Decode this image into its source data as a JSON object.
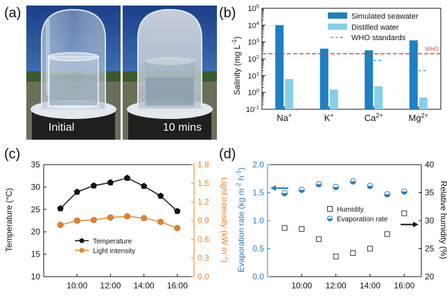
{
  "panel_labels": {
    "a": "(a)",
    "b": "(b)",
    "c": "(c)",
    "d": "(d)"
  },
  "photos": [
    {
      "caption": "Initial"
    },
    {
      "caption": "10 mins"
    }
  ],
  "colors": {
    "seawater": "#1f7fc2",
    "distilled": "#86cfe6",
    "who": "#2a8fd0",
    "who_line": "#e23a3a",
    "temperature": "#111111",
    "light": "#e9822a",
    "evaporation": "#2a7cbb",
    "left_axis_d": "#2a7cbb",
    "right_axis_c": "#e9822a"
  },
  "chart_data": [
    {
      "id": "b",
      "type": "bar",
      "ylabel": "Salinity (mg L",
      "ylabel_sup": "-1",
      "ylabel_end": ")",
      "yscale": "log",
      "ylim": [
        0.1,
        100000
      ],
      "yticks": [
        {
          "base": "10",
          "exp": "-1"
        },
        {
          "base": "10",
          "exp": "0"
        },
        {
          "base": "10",
          "exp": "1"
        },
        {
          "base": "10",
          "exp": "2"
        },
        {
          "base": "10",
          "exp": "3"
        },
        {
          "base": "10",
          "exp": "4"
        },
        {
          "base": "10",
          "exp": "5"
        }
      ],
      "categories": [
        {
          "base": "Na",
          "sup": "+"
        },
        {
          "base": "K",
          "sup": "+"
        },
        {
          "base": "Ca",
          "sup": "2+"
        },
        {
          "base": "Mg",
          "sup": "2+"
        }
      ],
      "series": [
        {
          "name": "Simulated seawater",
          "values": [
            10000,
            400,
            320,
            1250
          ]
        },
        {
          "name": "Distilled water",
          "values": [
            6.3,
            1.5,
            2.3,
            0.5
          ]
        }
      ],
      "standards_name": "WHO standards",
      "standards": [
        null,
        null,
        80,
        20
      ],
      "who_line": {
        "value": 200,
        "label": "WHO"
      }
    },
    {
      "id": "c",
      "type": "line",
      "ylabel": "Temperature (°C)",
      "ylim": [
        10,
        35
      ],
      "yticks": [
        "10",
        "15",
        "20",
        "25",
        "30",
        "35"
      ],
      "ylabel_right": "Light intensity (kW m",
      "ylabel_right_sup": "-2",
      "ylabel_right_end": ")",
      "ylim_right": [
        0.0,
        1.8
      ],
      "yticks_right": [
        "0.0",
        "0.3",
        "0.6",
        "0.9",
        "1.2",
        "1.5",
        "1.8"
      ],
      "xlim": [
        8,
        17
      ],
      "x": [
        9,
        10,
        11,
        12,
        13,
        14,
        15,
        16
      ],
      "xtick_labels": [
        "10:00",
        "12:00",
        "14:00",
        "16:00"
      ],
      "xtick_values": [
        10,
        12,
        14,
        16
      ],
      "series": [
        {
          "name": "Temperature",
          "values": [
            25.2,
            28.9,
            30.3,
            31.0,
            32.0,
            30.2,
            28.0,
            24.6
          ],
          "axis": "left"
        },
        {
          "name": "Light intensity",
          "values": [
            0.83,
            0.9,
            0.91,
            0.95,
            0.97,
            0.94,
            0.88,
            0.78
          ],
          "axis": "right"
        }
      ]
    },
    {
      "id": "d",
      "type": "scatter",
      "ylabel": "Evaporation rate (kg m",
      "ylabel_sup1": "-2",
      "ylabel_mid": " h",
      "ylabel_sup2": "-1",
      "ylabel_end": ")",
      "ylim": [
        0.0,
        2.0
      ],
      "yticks": [
        "0.0",
        "0.5",
        "1.0",
        "1.5",
        "2.0"
      ],
      "ylabel_right": "Relative humidity (%)",
      "ylim_right": [
        20,
        40
      ],
      "yticks_right": [
        "20",
        "25",
        "30",
        "35",
        "40"
      ],
      "xlim": [
        8,
        17
      ],
      "xtick_labels": [
        "10:00",
        "12:00",
        "14:00",
        "16:00"
      ],
      "xtick_values": [
        10,
        12,
        14,
        16
      ],
      "series": [
        {
          "name": "Humidity",
          "x": [
            9,
            10,
            11,
            12,
            13,
            14,
            15,
            16
          ],
          "values": [
            28.7,
            28.5,
            26.7,
            23.6,
            24.2,
            25.0,
            27.6,
            31.3
          ],
          "axis": "right"
        },
        {
          "name": "Evaporation rate",
          "x": [
            9,
            10,
            11,
            12,
            13,
            14,
            15,
            16
          ],
          "values": [
            1.49,
            1.55,
            1.65,
            1.6,
            1.7,
            1.62,
            1.47,
            1.52
          ],
          "axis": "left"
        }
      ]
    }
  ]
}
